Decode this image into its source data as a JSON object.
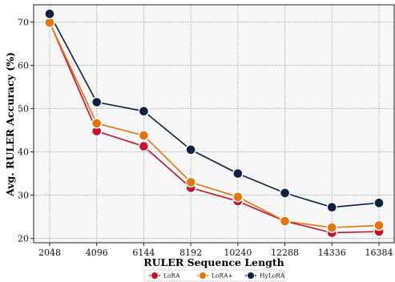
{
  "chart_data": {
    "type": "line",
    "title": "",
    "xlabel": "RULER Sequence Length",
    "ylabel": "Avg. RULER Accuracy (%)",
    "categories": [
      "2048",
      "4096",
      "6144",
      "8192",
      "10240",
      "12288",
      "14336",
      "16384"
    ],
    "ylim": [
      19,
      74
    ],
    "yticks": [
      20,
      30,
      40,
      50,
      60,
      70
    ],
    "grid": true,
    "legend_position": "bottom-center",
    "series": [
      {
        "name": "LoRA",
        "color": "#C8102E",
        "values": [
          70.0,
          44.8,
          41.3,
          31.7,
          28.6,
          24.0,
          21.3,
          21.6
        ]
      },
      {
        "name": "LoRA+",
        "color": "#E8730C",
        "values": [
          69.9,
          46.6,
          43.8,
          33.0,
          29.6,
          24.0,
          22.5,
          23.0
        ]
      },
      {
        "name": "HyLoRA",
        "color": "#0B2240",
        "values": [
          71.9,
          51.5,
          49.4,
          40.5,
          35.0,
          30.5,
          27.2,
          28.2
        ]
      }
    ]
  }
}
